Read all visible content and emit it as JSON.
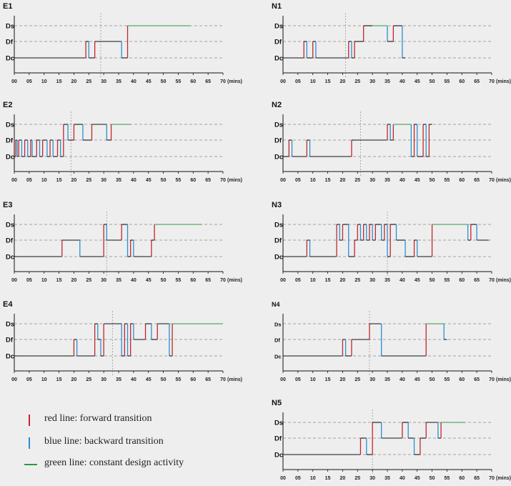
{
  "common": {
    "ticks": [
      "00",
      "05",
      "10",
      "15",
      "20",
      "25",
      "30",
      "35",
      "40",
      "45",
      "50",
      "55",
      "60",
      "65",
      "70"
    ],
    "unit": "(mins)",
    "levels": [
      "Ds",
      "Df",
      "Dc"
    ],
    "colors": {
      "forward": "#c0272d",
      "backward": "#2a8fd0",
      "constant": "#2b9a3a",
      "base": "#111111",
      "dash": "#8a8a8a"
    }
  },
  "chart_data": [
    {
      "id": "E1",
      "type": "line",
      "xlim": [
        0,
        70
      ],
      "divider": 29,
      "transitions": [
        [
          24,
          "Df"
        ],
        [
          25,
          "Dc"
        ],
        [
          27,
          "Df"
        ],
        [
          36,
          "Dc"
        ],
        [
          38,
          "Ds"
        ]
      ],
      "constant": [
        [
          39,
          59
        ]
      ],
      "end": 59
    },
    {
      "id": "E2",
      "type": "line",
      "xlim": [
        0,
        70
      ],
      "divider": 19,
      "transitions": [
        [
          0.5,
          "Df"
        ],
        [
          1,
          "Dc"
        ],
        [
          1.5,
          "Df"
        ],
        [
          2.5,
          "Dc"
        ],
        [
          3.5,
          "Df"
        ],
        [
          4.5,
          "Dc"
        ],
        [
          5.5,
          "Df"
        ],
        [
          6,
          "Dc"
        ],
        [
          7.5,
          "Df"
        ],
        [
          8.5,
          "Dc"
        ],
        [
          9.5,
          "Df"
        ],
        [
          11,
          "Dc"
        ],
        [
          12,
          "Df"
        ],
        [
          13,
          "Dc"
        ],
        [
          14.5,
          "Df"
        ],
        [
          15.5,
          "Dc"
        ],
        [
          16.5,
          "Ds"
        ],
        [
          18,
          "Df"
        ],
        [
          20,
          "Ds"
        ],
        [
          23,
          "Df"
        ],
        [
          26,
          "Ds"
        ],
        [
          31,
          "Df"
        ],
        [
          32.5,
          "Ds"
        ]
      ],
      "constant": [
        [
          33,
          39
        ]
      ],
      "end": 39
    },
    {
      "id": "E3",
      "type": "line",
      "xlim": [
        0,
        70
      ],
      "divider": 31,
      "transitions": [
        [
          16,
          "Df"
        ],
        [
          22,
          "Dc"
        ],
        [
          30,
          "Ds"
        ],
        [
          31,
          "Df"
        ],
        [
          36,
          "Ds"
        ],
        [
          38,
          "Dc"
        ],
        [
          39,
          "Df"
        ],
        [
          40,
          "Dc"
        ],
        [
          46,
          "Df"
        ],
        [
          47,
          "Ds"
        ]
      ],
      "constant": [
        [
          47,
          63
        ]
      ],
      "end": 63
    },
    {
      "id": "E4",
      "type": "line",
      "xlim": [
        0,
        70
      ],
      "divider": 33,
      "transitions": [
        [
          20,
          "Df"
        ],
        [
          21,
          "Dc"
        ],
        [
          27,
          "Ds"
        ],
        [
          28,
          "Df"
        ],
        [
          29,
          "Dc"
        ],
        [
          30,
          "Ds"
        ],
        [
          36,
          "Dc"
        ],
        [
          37,
          "Ds"
        ],
        [
          38,
          "Dc"
        ],
        [
          39,
          "Ds"
        ],
        [
          40,
          "Df"
        ],
        [
          44,
          "Ds"
        ],
        [
          46,
          "Df"
        ],
        [
          48,
          "Ds"
        ],
        [
          52,
          "Dc"
        ],
        [
          53,
          "Ds"
        ]
      ],
      "constant": [
        [
          54,
          70
        ]
      ],
      "end": 70
    },
    {
      "id": "N1",
      "type": "line",
      "xlim": [
        0,
        70
      ],
      "divider": 21,
      "transitions": [
        [
          7,
          "Df"
        ],
        [
          8,
          "Dc"
        ],
        [
          10,
          "Df"
        ],
        [
          11,
          "Dc"
        ],
        [
          22,
          "Df"
        ],
        [
          23,
          "Dc"
        ],
        [
          24,
          "Df"
        ],
        [
          27,
          "Ds"
        ],
        [
          30,
          "Ds"
        ],
        [
          35,
          "Df"
        ],
        [
          37,
          "Ds"
        ],
        [
          40,
          "Dc"
        ]
      ],
      "constant": [
        [
          30,
          35
        ]
      ],
      "end": 41
    },
    {
      "id": "N2",
      "type": "line",
      "xlim": [
        0,
        70
      ],
      "divider": 26,
      "transitions": [
        [
          2,
          "Df"
        ],
        [
          3,
          "Dc"
        ],
        [
          8,
          "Df"
        ],
        [
          9,
          "Dc"
        ],
        [
          23,
          "Df"
        ],
        [
          24,
          "Df"
        ],
        [
          35,
          "Ds"
        ],
        [
          36,
          "Df"
        ],
        [
          37,
          "Ds"
        ],
        [
          43,
          "Dc"
        ],
        [
          44,
          "Ds"
        ],
        [
          45,
          "Dc"
        ],
        [
          47,
          "Ds"
        ],
        [
          48,
          "Dc"
        ],
        [
          49,
          "Ds"
        ]
      ],
      "constant": [
        [
          37,
          43
        ]
      ],
      "end": 50
    },
    {
      "id": "N3",
      "type": "line",
      "xlim": [
        0,
        70
      ],
      "divider": 35,
      "transitions": [
        [
          8,
          "Df"
        ],
        [
          9,
          "Dc"
        ],
        [
          18,
          "Ds"
        ],
        [
          19,
          "Df"
        ],
        [
          20,
          "Ds"
        ],
        [
          22,
          "Dc"
        ],
        [
          24,
          "Df"
        ],
        [
          25,
          "Ds"
        ],
        [
          26,
          "Df"
        ],
        [
          27,
          "Ds"
        ],
        [
          28,
          "Df"
        ],
        [
          29,
          "Ds"
        ],
        [
          30,
          "Df"
        ],
        [
          31,
          "Ds"
        ],
        [
          33,
          "Df"
        ],
        [
          34,
          "Ds"
        ],
        [
          35,
          "Dc"
        ],
        [
          36,
          "Ds"
        ],
        [
          38,
          "Df"
        ],
        [
          41,
          "Dc"
        ],
        [
          44,
          "Df"
        ],
        [
          45,
          "Dc"
        ],
        [
          50,
          "Ds"
        ],
        [
          62,
          "Df"
        ],
        [
          63,
          "Ds"
        ],
        [
          65,
          "Df"
        ]
      ],
      "constant": [
        [
          51,
          62
        ]
      ],
      "end": 69
    },
    {
      "id": "N4",
      "type": "line",
      "xlim": [
        0,
        70
      ],
      "divider": 29,
      "transitions": [
        [
          20,
          "Df"
        ],
        [
          21,
          "Dc"
        ],
        [
          23,
          "Df"
        ],
        [
          29,
          "Ds"
        ],
        [
          33,
          "Dc"
        ],
        [
          48,
          "Ds"
        ],
        [
          54,
          "Df"
        ]
      ],
      "constant": [
        [
          48,
          54
        ]
      ],
      "end": 55
    },
    {
      "id": "N5",
      "type": "line",
      "xlim": [
        0,
        70
      ],
      "divider": 30,
      "transitions": [
        [
          26,
          "Df"
        ],
        [
          28,
          "Dc"
        ],
        [
          30,
          "Ds"
        ],
        [
          33,
          "Df"
        ],
        [
          40,
          "Ds"
        ],
        [
          42,
          "Df"
        ],
        [
          44,
          "Dc"
        ],
        [
          46,
          "Df"
        ],
        [
          48,
          "Ds"
        ],
        [
          52,
          "Df"
        ],
        [
          53,
          "Ds"
        ]
      ],
      "constant": [
        [
          54,
          61
        ]
      ],
      "end": 61
    }
  ],
  "legend": [
    {
      "key": "forward",
      "text": "red line: forward transition",
      "style": "bar"
    },
    {
      "key": "backward",
      "text": "blue line: backward transition",
      "style": "bar"
    },
    {
      "key": "constant",
      "text": "green line: constant design activity",
      "style": "hline"
    }
  ]
}
